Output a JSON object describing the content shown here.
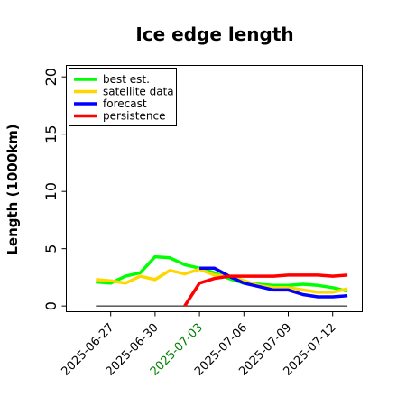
{
  "chart_data": {
    "type": "line",
    "title": "Ice edge length",
    "xlabel": "",
    "ylabel": "Length (1000km)",
    "xlim": [
      "2025-06-24",
      "2025-07-14"
    ],
    "ylim": [
      -0.5,
      21
    ],
    "yticks": [
      0,
      5,
      10,
      15,
      20
    ],
    "ytick_labels": [
      "0",
      "5",
      "10",
      "15",
      "20"
    ],
    "xticks": [
      "2025-06-27",
      "2025-06-30",
      "2025-07-03",
      "2025-07-06",
      "2025-07-09",
      "2025-07-12"
    ],
    "xtick_labels": [
      "2025-06-27",
      "2025-06-30",
      "2025-07-03",
      "2025-07-06",
      "2025-07-09",
      "2025-07-12"
    ],
    "xtick_colors": [
      "#000000",
      "#000000",
      "#008000",
      "#000000",
      "#000000",
      "#000000"
    ],
    "grid": false,
    "legend_position": "top-left",
    "baseline": {
      "y": 0,
      "x_from": "2025-06-26",
      "x_to": "2025-07-13",
      "color": "#000000"
    },
    "series": [
      {
        "name": "best est.",
        "color": "#00ff00",
        "x": [
          "2025-06-26",
          "2025-06-27",
          "2025-06-28",
          "2025-06-29",
          "2025-06-30",
          "2025-07-01",
          "2025-07-02",
          "2025-07-03",
          "2025-07-04",
          "2025-07-05",
          "2025-07-06",
          "2025-07-07",
          "2025-07-08",
          "2025-07-09",
          "2025-07-10",
          "2025-07-11",
          "2025-07-12",
          "2025-07-13"
        ],
        "y": [
          2.1,
          2.0,
          2.6,
          2.9,
          4.3,
          4.2,
          3.6,
          3.3,
          2.9,
          2.4,
          2.0,
          1.9,
          1.8,
          1.8,
          1.9,
          1.8,
          1.6,
          1.3
        ]
      },
      {
        "name": "satellite data",
        "color": "#ffd700",
        "x": [
          "2025-06-26",
          "2025-06-27",
          "2025-06-28",
          "2025-06-29",
          "2025-06-30",
          "2025-07-01",
          "2025-07-02",
          "2025-07-03",
          "2025-07-04",
          "2025-07-05",
          "2025-07-06",
          "2025-07-07",
          "2025-07-08",
          "2025-07-09",
          "2025-07-10",
          "2025-07-11",
          "2025-07-12",
          "2025-07-13"
        ],
        "y": [
          2.3,
          2.2,
          2.0,
          2.6,
          2.3,
          3.1,
          2.8,
          3.2,
          2.7,
          2.6,
          2.2,
          1.8,
          1.6,
          1.6,
          1.4,
          1.2,
          1.2,
          1.5
        ]
      },
      {
        "name": "forecast",
        "color": "#0000ff",
        "x": [
          "2025-07-03",
          "2025-07-04",
          "2025-07-05",
          "2025-07-06",
          "2025-07-07",
          "2025-07-08",
          "2025-07-09",
          "2025-07-10",
          "2025-07-11",
          "2025-07-12",
          "2025-07-13"
        ],
        "y": [
          3.3,
          3.3,
          2.6,
          2.0,
          1.7,
          1.4,
          1.4,
          1.0,
          0.8,
          0.8,
          0.9
        ]
      },
      {
        "name": "persistence",
        "color": "#ff0000",
        "x": [
          "2025-07-02",
          "2025-07-03",
          "2025-07-04",
          "2025-07-05",
          "2025-07-06",
          "2025-07-07",
          "2025-07-08",
          "2025-07-09",
          "2025-07-10",
          "2025-07-11",
          "2025-07-12",
          "2025-07-13"
        ],
        "y": [
          0.0,
          2.0,
          2.4,
          2.6,
          2.6,
          2.6,
          2.6,
          2.7,
          2.7,
          2.7,
          2.6,
          2.7
        ]
      }
    ]
  }
}
